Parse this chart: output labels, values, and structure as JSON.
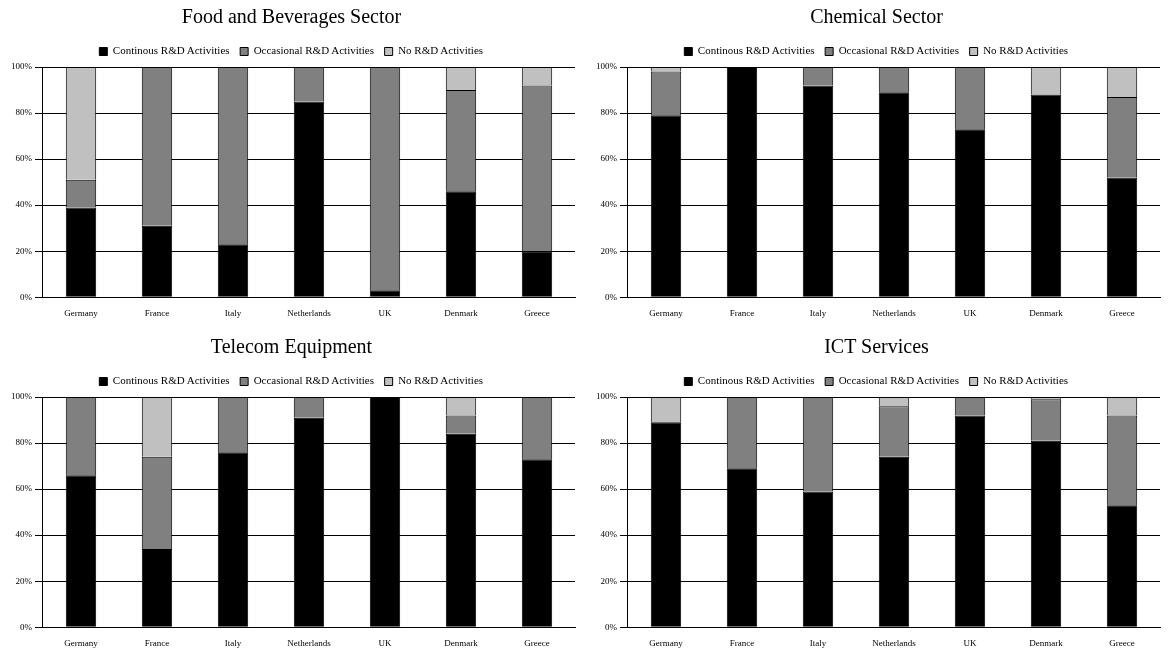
{
  "chart_data": [
    {
      "type": "bar",
      "title": "Food and Beverages Sector",
      "stacked": true,
      "categories": [
        "Germany",
        "France",
        "Italy",
        "Netherlands",
        "UK",
        "Denmark",
        "Greece"
      ],
      "ylim": [
        0,
        100
      ],
      "yticks": [
        {
          "value": 0,
          "label": "0%"
        },
        {
          "value": 20,
          "label": "20%"
        },
        {
          "value": 40,
          "label": "40%"
        },
        {
          "value": 60,
          "label": "60%"
        },
        {
          "value": 80,
          "label": "80%"
        },
        {
          "value": 100,
          "label": "100%"
        }
      ],
      "grid": "y",
      "legend": "top",
      "series": [
        {
          "name": "Continous R&D Activities",
          "color": "#000000",
          "values": [
            39,
            31,
            23,
            85,
            3,
            46,
            20
          ]
        },
        {
          "name": "Occasional R&D Activities",
          "color": "#808080",
          "values": [
            12,
            69,
            77,
            15,
            97,
            44,
            72
          ]
        },
        {
          "name": "No R&D Activities",
          "color": "#c0c0c0",
          "values": [
            49,
            0,
            0,
            0,
            0,
            10,
            8
          ]
        }
      ]
    },
    {
      "type": "bar",
      "title": "Chemical Sector",
      "stacked": true,
      "categories": [
        "Germany",
        "France",
        "Italy",
        "Netherlands",
        "UK",
        "Denmark",
        "Greece"
      ],
      "ylim": [
        0,
        100
      ],
      "yticks": [
        {
          "value": 0,
          "label": "0%"
        },
        {
          "value": 20,
          "label": "20%"
        },
        {
          "value": 40,
          "label": "40%"
        },
        {
          "value": 60,
          "label": "60%"
        },
        {
          "value": 80,
          "label": "80%"
        },
        {
          "value": 100,
          "label": "100%"
        }
      ],
      "grid": "y",
      "legend": "top",
      "series": [
        {
          "name": "Continous R&D Activities",
          "color": "#000000",
          "values": [
            79,
            100,
            92,
            89,
            73,
            88,
            52
          ]
        },
        {
          "name": "Occasional R&D Activities",
          "color": "#808080",
          "values": [
            19,
            0,
            8,
            11,
            27,
            0,
            35
          ]
        },
        {
          "name": "No R&D Activities",
          "color": "#c0c0c0",
          "values": [
            2,
            0,
            0,
            0,
            0,
            12,
            13
          ]
        }
      ]
    },
    {
      "type": "bar",
      "title": "Telecom Equipment",
      "stacked": true,
      "categories": [
        "Germany",
        "France",
        "Italy",
        "Netherlands",
        "UK",
        "Denmark",
        "Greece"
      ],
      "ylim": [
        0,
        100
      ],
      "yticks": [
        {
          "value": 0,
          "label": "0%"
        },
        {
          "value": 20,
          "label": "20%"
        },
        {
          "value": 40,
          "label": "40%"
        },
        {
          "value": 60,
          "label": "60%"
        },
        {
          "value": 80,
          "label": "80%"
        },
        {
          "value": 100,
          "label": "100%"
        }
      ],
      "grid": "y",
      "legend": "top",
      "series": [
        {
          "name": "Continous R&D Activities",
          "color": "#000000",
          "values": [
            66,
            34,
            76,
            91,
            100,
            84,
            73
          ]
        },
        {
          "name": "Occasional R&D Activities",
          "color": "#808080",
          "values": [
            34,
            40,
            24,
            9,
            0,
            8,
            27
          ]
        },
        {
          "name": "No R&D Activities",
          "color": "#c0c0c0",
          "values": [
            0,
            26,
            0,
            0,
            0,
            8,
            0
          ]
        }
      ]
    },
    {
      "type": "bar",
      "title": "ICT Services",
      "stacked": true,
      "categories": [
        "Germany",
        "France",
        "Italy",
        "Netherlands",
        "UK",
        "Denmark",
        "Greece"
      ],
      "ylim": [
        0,
        100
      ],
      "yticks": [
        {
          "value": 0,
          "label": "0%"
        },
        {
          "value": 20,
          "label": "20%"
        },
        {
          "value": 40,
          "label": "40%"
        },
        {
          "value": 60,
          "label": "60%"
        },
        {
          "value": 80,
          "label": "80%"
        },
        {
          "value": 100,
          "label": "100%"
        }
      ],
      "grid": "y",
      "legend": "top",
      "series": [
        {
          "name": "Continous R&D Activities",
          "color": "#000000",
          "values": [
            89,
            69,
            59,
            74,
            92,
            81,
            53
          ]
        },
        {
          "name": "Occasional R&D Activities",
          "color": "#808080",
          "values": [
            0,
            31,
            41,
            22,
            8,
            18,
            39
          ]
        },
        {
          "name": "No R&D Activities",
          "color": "#c0c0c0",
          "values": [
            11,
            0,
            0,
            4,
            0,
            1,
            8
          ]
        }
      ]
    }
  ]
}
